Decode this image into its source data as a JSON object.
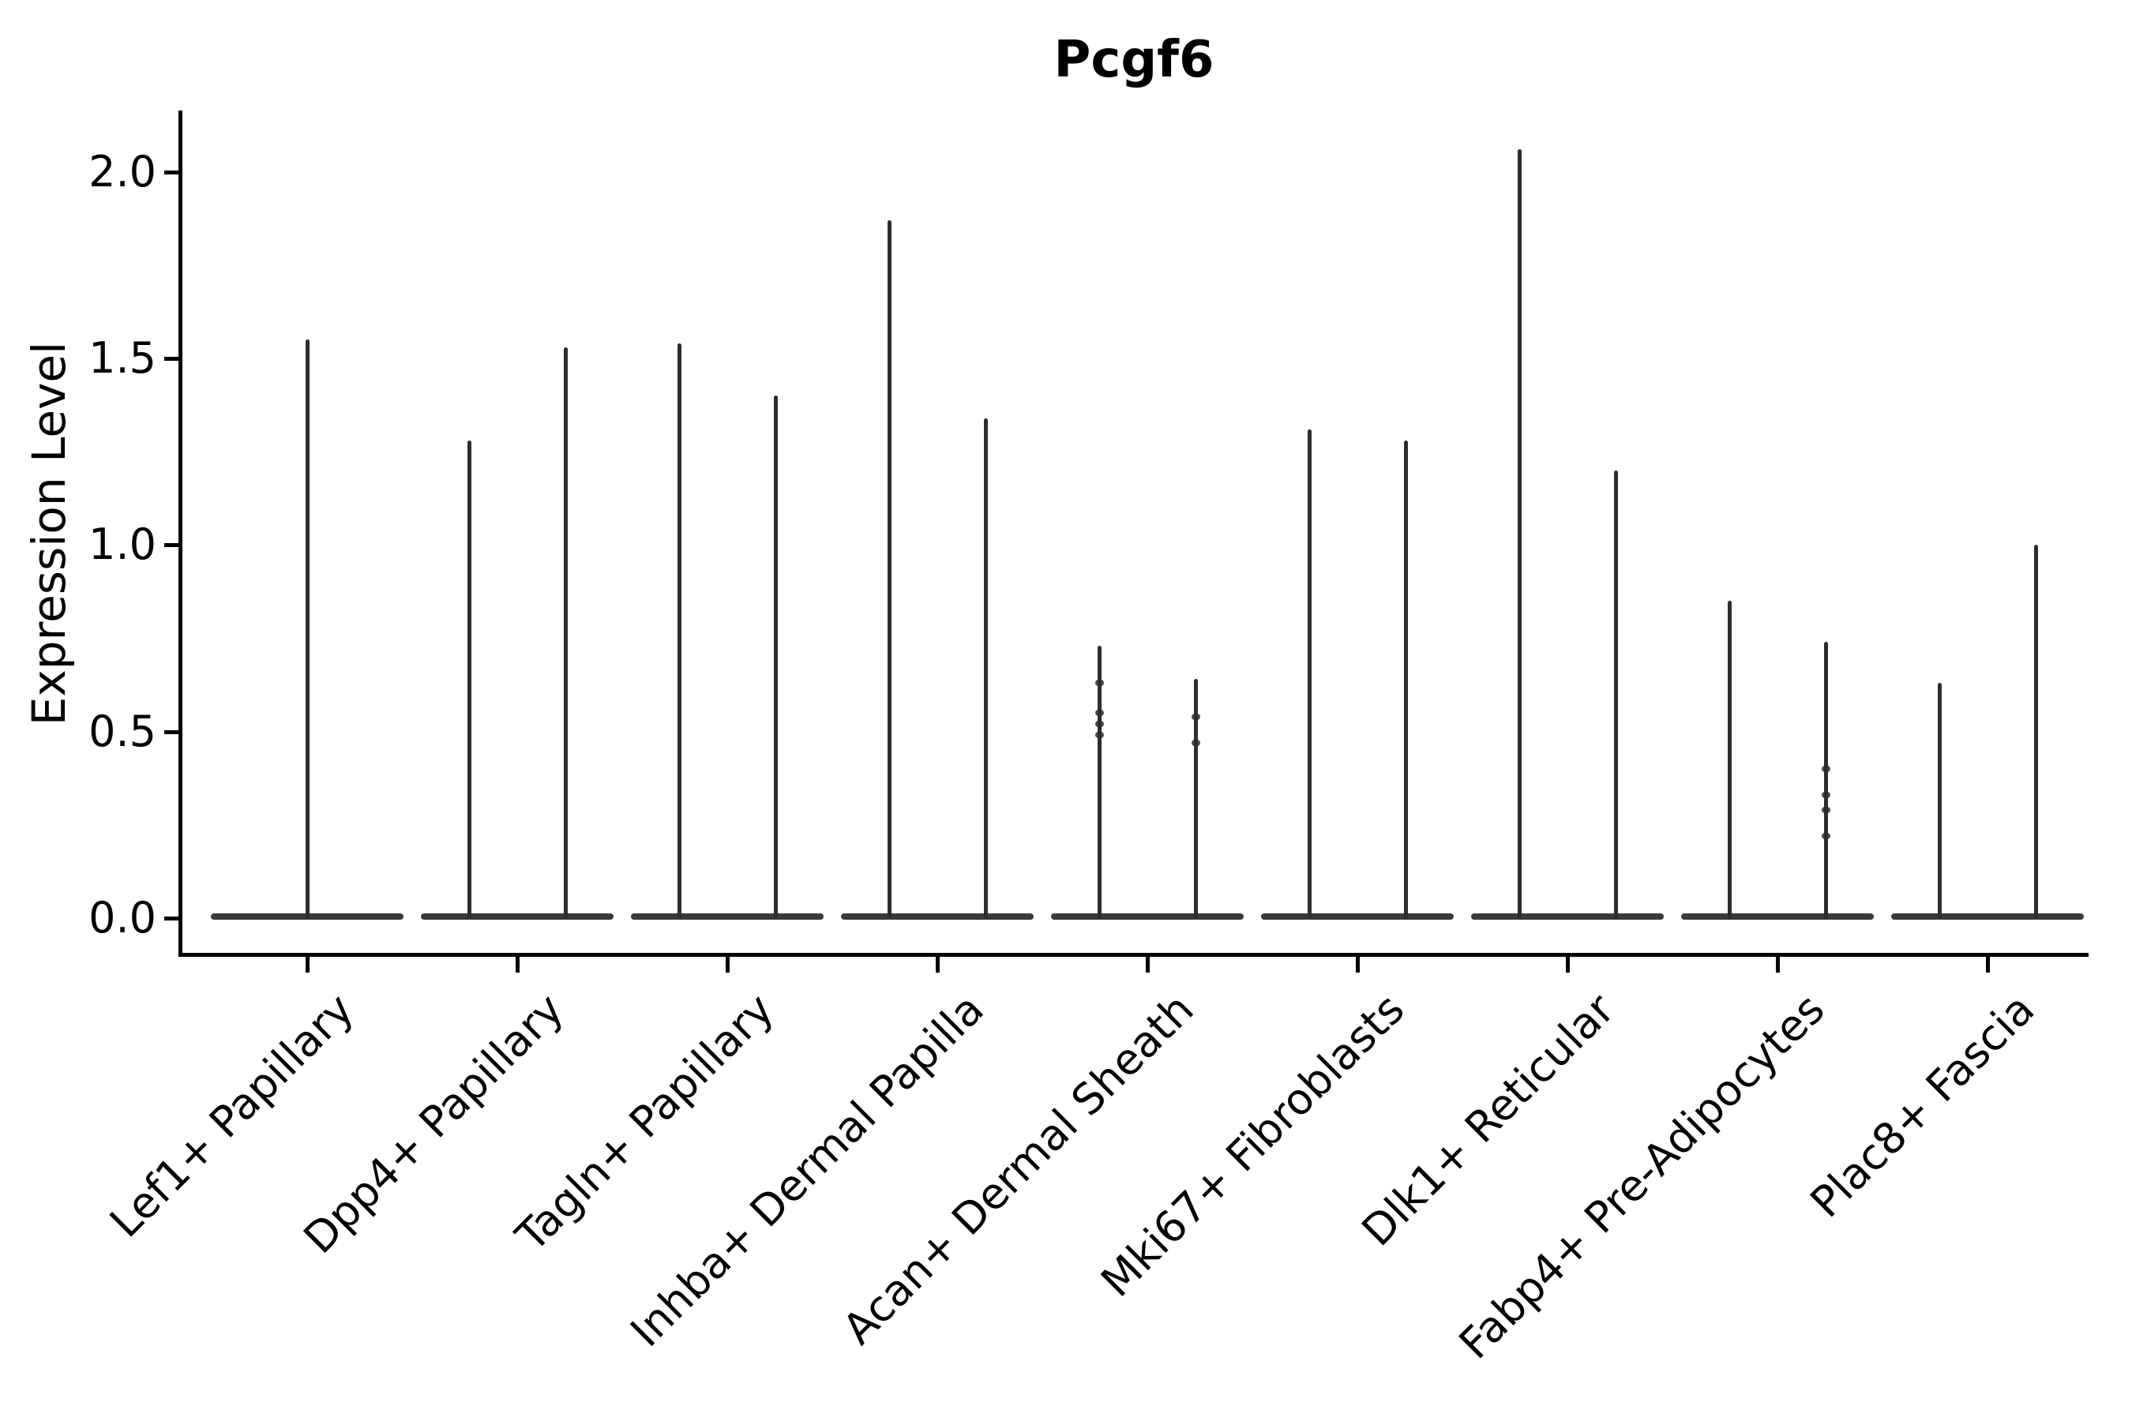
{
  "title": "Pcgf6",
  "y_axis": {
    "label": "Expression Level",
    "tick_labels": [
      "0.0",
      "0.5",
      "1.0",
      "1.5",
      "2.0"
    ]
  },
  "chart_data": {
    "type": "violin",
    "title": "Pcgf6",
    "xlabel": "",
    "ylabel": "Expression Level",
    "ylim": [
      -0.12,
      2.17
    ],
    "yticks": [
      0.0,
      0.5,
      1.0,
      1.5,
      2.0
    ],
    "ytick_labels": [
      "0.0",
      "0.5",
      "1.0",
      "1.5",
      "2.0"
    ],
    "x_tick_rotation": 45,
    "grid": false,
    "legend": false,
    "background_color": "#ffffff",
    "violin_line_color": "#2d2d2d",
    "violin_base_color": "#3a3a3a",
    "axis_color": "#000000",
    "categories": [
      "Lef1+ Papillary",
      "Dpp4+ Papillary",
      "Tagln+ Papillary",
      "Inhba+ Dermal Papilla",
      "Acan+ Dermal Sheath",
      "Mki67+ Fibroblasts",
      "Dlk1+ Reticular",
      "Fabp4+ Pre-Adipocytes",
      "Plac8+ Fascia"
    ],
    "series": [
      {
        "category": "Lef1+ Papillary",
        "violins": [
          {
            "max": 1.55,
            "points": []
          }
        ]
      },
      {
        "category": "Dpp4+ Papillary",
        "violins": [
          {
            "max": 1.28,
            "points": []
          },
          {
            "max": 1.53,
            "points": []
          }
        ]
      },
      {
        "category": "Tagln+ Papillary",
        "violins": [
          {
            "max": 1.54,
            "points": []
          },
          {
            "max": 1.4,
            "points": []
          }
        ]
      },
      {
        "category": "Inhba+ Dermal Papilla",
        "violins": [
          {
            "max": 1.87,
            "points": []
          },
          {
            "max": 1.34,
            "points": []
          }
        ]
      },
      {
        "category": "Acan+ Dermal Sheath",
        "violins": [
          {
            "max": 0.73,
            "points": [
              0.63,
              0.55,
              0.52,
              0.49
            ]
          },
          {
            "max": 0.64,
            "points": [
              0.54,
              0.47
            ]
          }
        ]
      },
      {
        "category": "Mki67+ Fibroblasts",
        "violins": [
          {
            "max": 1.31,
            "points": []
          },
          {
            "max": 1.28,
            "points": []
          }
        ]
      },
      {
        "category": "Dlk1+ Reticular",
        "violins": [
          {
            "max": 2.06,
            "points": []
          },
          {
            "max": 1.2,
            "points": []
          }
        ]
      },
      {
        "category": "Fabp4+ Pre-Adipocytes",
        "violins": [
          {
            "max": 0.85,
            "points": []
          },
          {
            "max": 0.74,
            "points": [
              0.4,
              0.33,
              0.29,
              0.22
            ]
          }
        ]
      },
      {
        "category": "Plac8+ Fascia",
        "violins": [
          {
            "max": 0.63,
            "points": []
          },
          {
            "max": 1.0,
            "points": []
          }
        ]
      }
    ],
    "description": "Violin plot of Pcgf6 expression per fibroblast subtype; density is concentrated at 0 (flat baseline) with a thin spike rising to each group's maximum expression value."
  }
}
